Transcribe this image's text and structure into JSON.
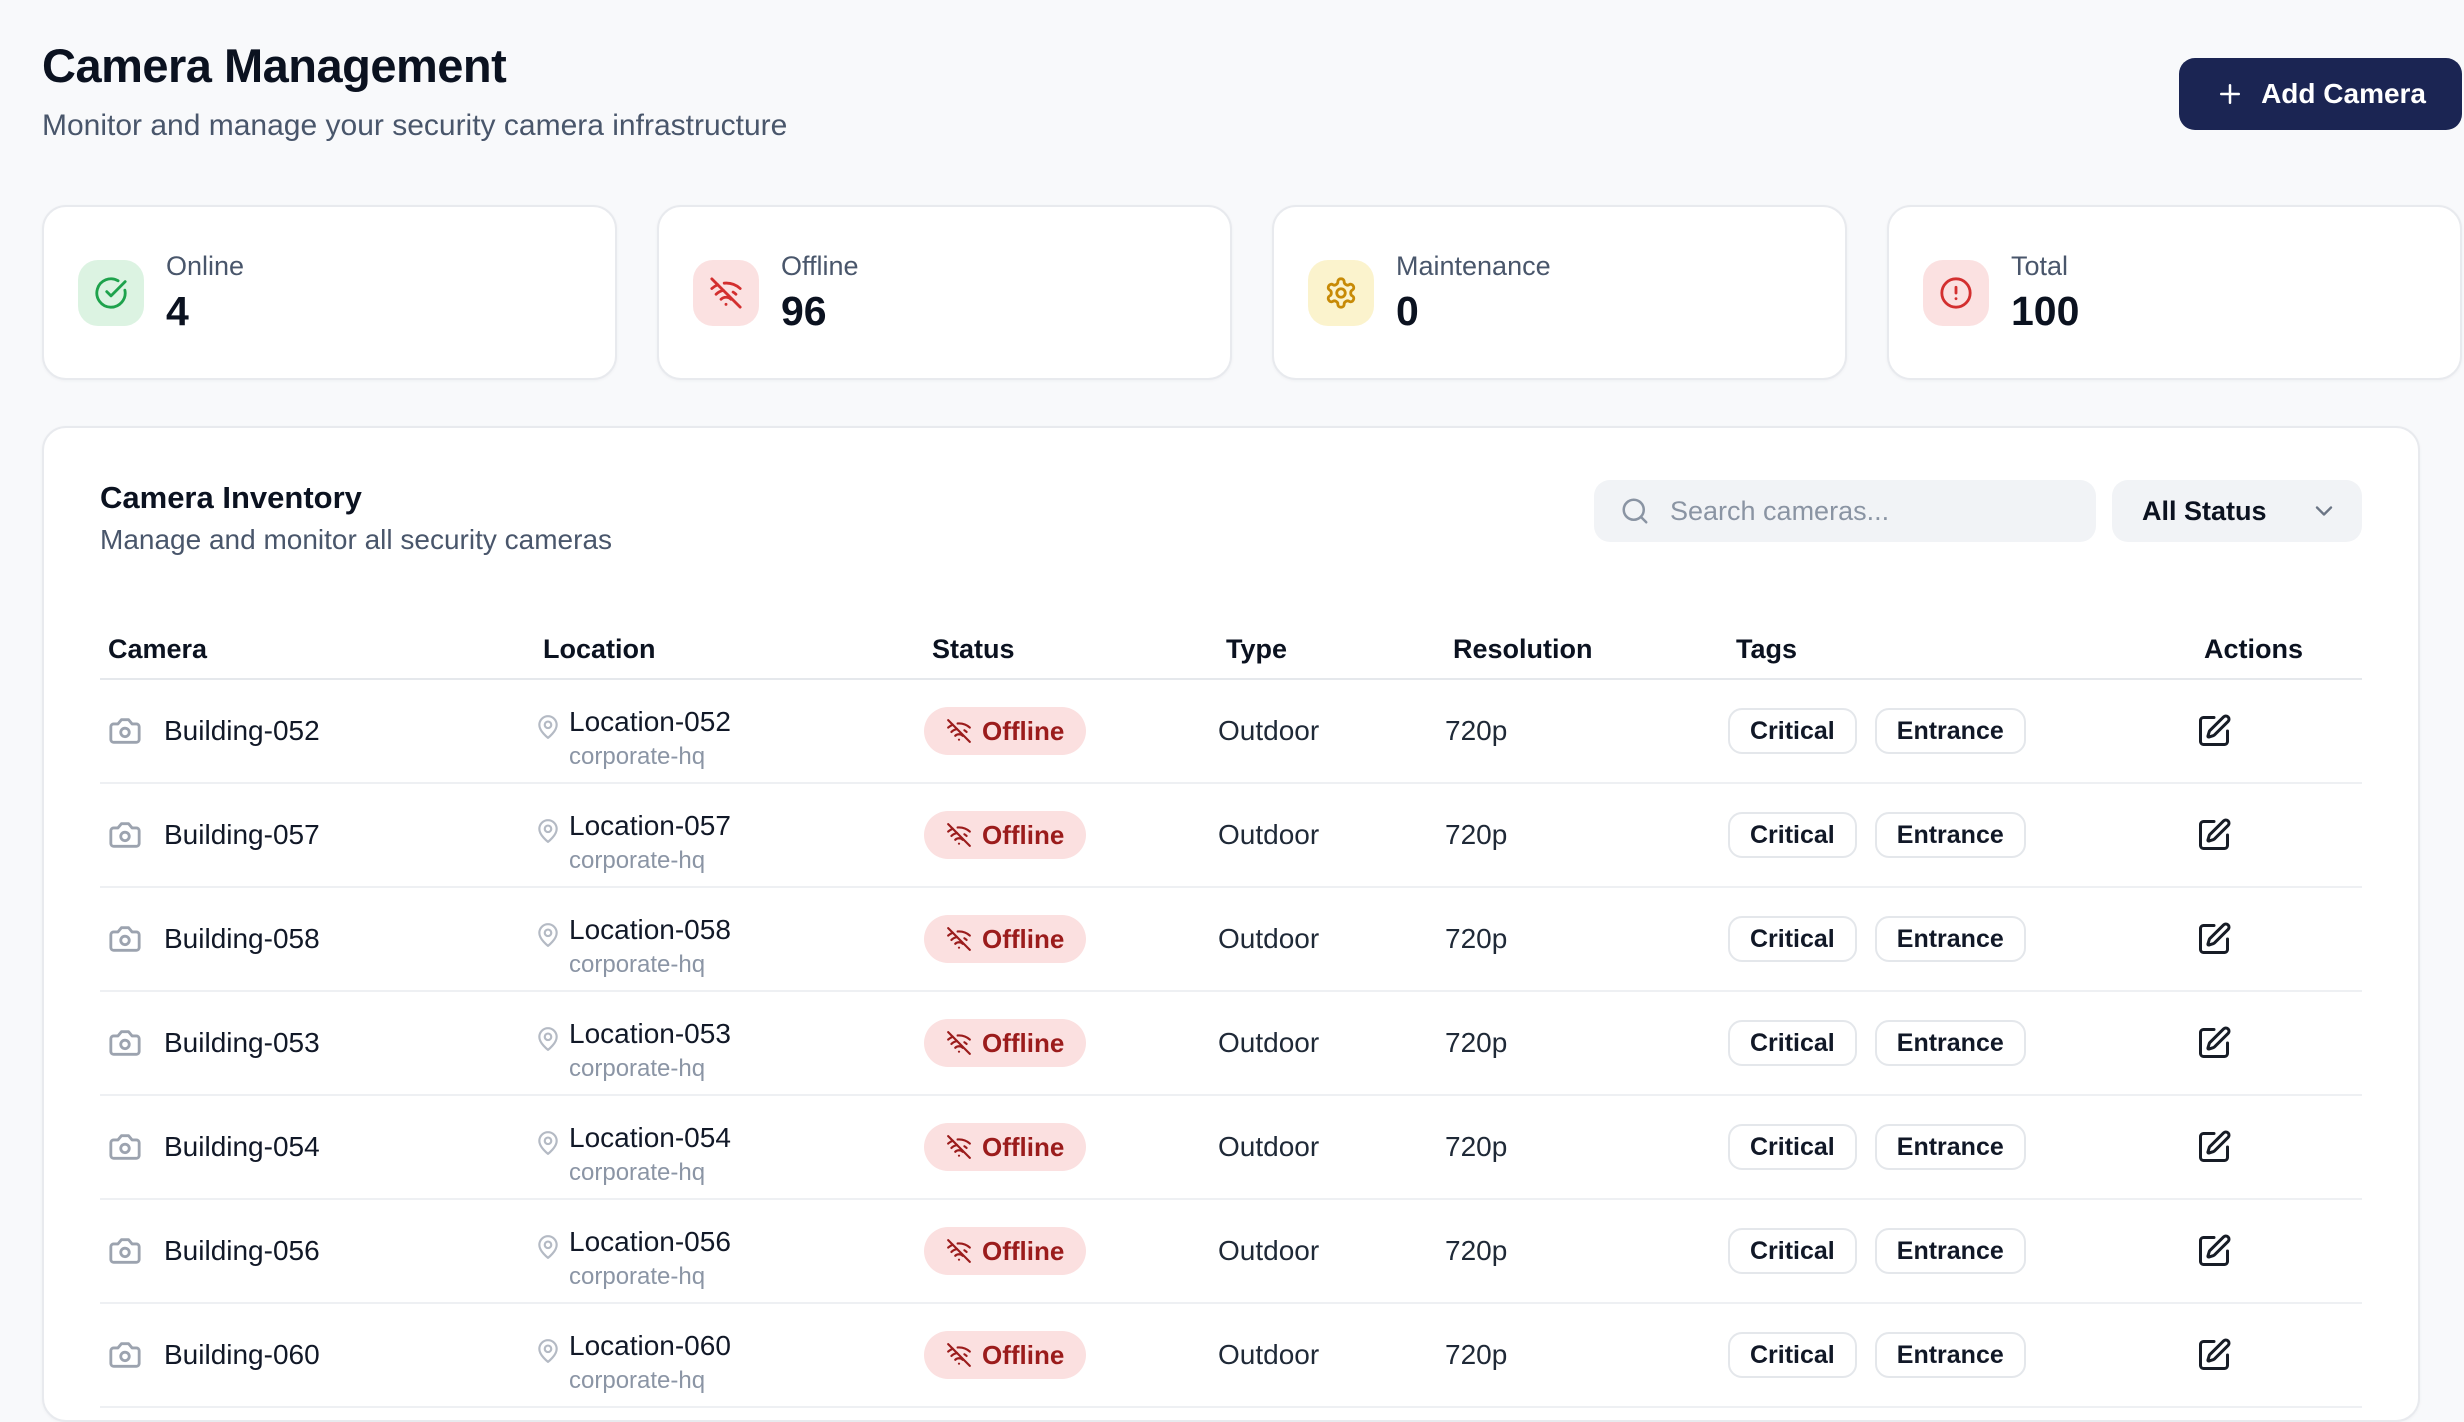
{
  "page": {
    "title": "Camera Management",
    "subtitle": "Monitor and manage your security camera infrastructure"
  },
  "header": {
    "add_button_label": "Add Camera",
    "add_button_icon": "plus-icon"
  },
  "stats": [
    {
      "label": "Online",
      "value": "4",
      "icon": "check-circle-icon",
      "icon_color": "#1ea24c",
      "icon_bg": "#dcf3e2"
    },
    {
      "label": "Offline",
      "value": "96",
      "icon": "wifi-off-icon",
      "icon_color": "#d32f2f",
      "icon_bg": "#fbe1e1"
    },
    {
      "label": "Maintenance",
      "value": "0",
      "icon": "gear-icon",
      "icon_color": "#c78a06",
      "icon_bg": "#fbf3cd"
    },
    {
      "label": "Total",
      "value": "100",
      "icon": "alert-circle-icon",
      "icon_color": "#d32f2f",
      "icon_bg": "#fbe1e1"
    }
  ],
  "inventory": {
    "title": "Camera Inventory",
    "subtitle": "Manage and monitor all security cameras",
    "search_placeholder": "Search cameras...",
    "search_icon": "search-icon",
    "status_filter_value": "All Status",
    "status_filter_icon": "chevron-down-icon"
  },
  "table": {
    "columns": [
      "Camera",
      "Location",
      "Status",
      "Type",
      "Resolution",
      "Tags",
      "Actions"
    ],
    "rows": [
      {
        "camera": "Building-052",
        "location": "Location-052",
        "site": "corporate-hq",
        "status": "Offline",
        "type": "Outdoor",
        "resolution": "720p",
        "tags": [
          "Critical",
          "Entrance"
        ]
      },
      {
        "camera": "Building-057",
        "location": "Location-057",
        "site": "corporate-hq",
        "status": "Offline",
        "type": "Outdoor",
        "resolution": "720p",
        "tags": [
          "Critical",
          "Entrance"
        ]
      },
      {
        "camera": "Building-058",
        "location": "Location-058",
        "site": "corporate-hq",
        "status": "Offline",
        "type": "Outdoor",
        "resolution": "720p",
        "tags": [
          "Critical",
          "Entrance"
        ]
      },
      {
        "camera": "Building-053",
        "location": "Location-053",
        "site": "corporate-hq",
        "status": "Offline",
        "type": "Outdoor",
        "resolution": "720p",
        "tags": [
          "Critical",
          "Entrance"
        ]
      },
      {
        "camera": "Building-054",
        "location": "Location-054",
        "site": "corporate-hq",
        "status": "Offline",
        "type": "Outdoor",
        "resolution": "720p",
        "tags": [
          "Critical",
          "Entrance"
        ]
      },
      {
        "camera": "Building-056",
        "location": "Location-056",
        "site": "corporate-hq",
        "status": "Offline",
        "type": "Outdoor",
        "resolution": "720p",
        "tags": [
          "Critical",
          "Entrance"
        ]
      },
      {
        "camera": "Building-060",
        "location": "Location-060",
        "site": "corporate-hq",
        "status": "Offline",
        "type": "Outdoor",
        "resolution": "720p",
        "tags": [
          "Critical",
          "Entrance"
        ]
      }
    ]
  },
  "colors": {
    "page_background": "#f8f9fb",
    "accent_button": "#1b2553",
    "online_green": "#1ea24c",
    "offline_red": "#d32f2f",
    "maintenance_yellow": "#c78a06",
    "status_badge_bg": "#fbe0e0",
    "status_badge_text": "#9b1c1c"
  }
}
